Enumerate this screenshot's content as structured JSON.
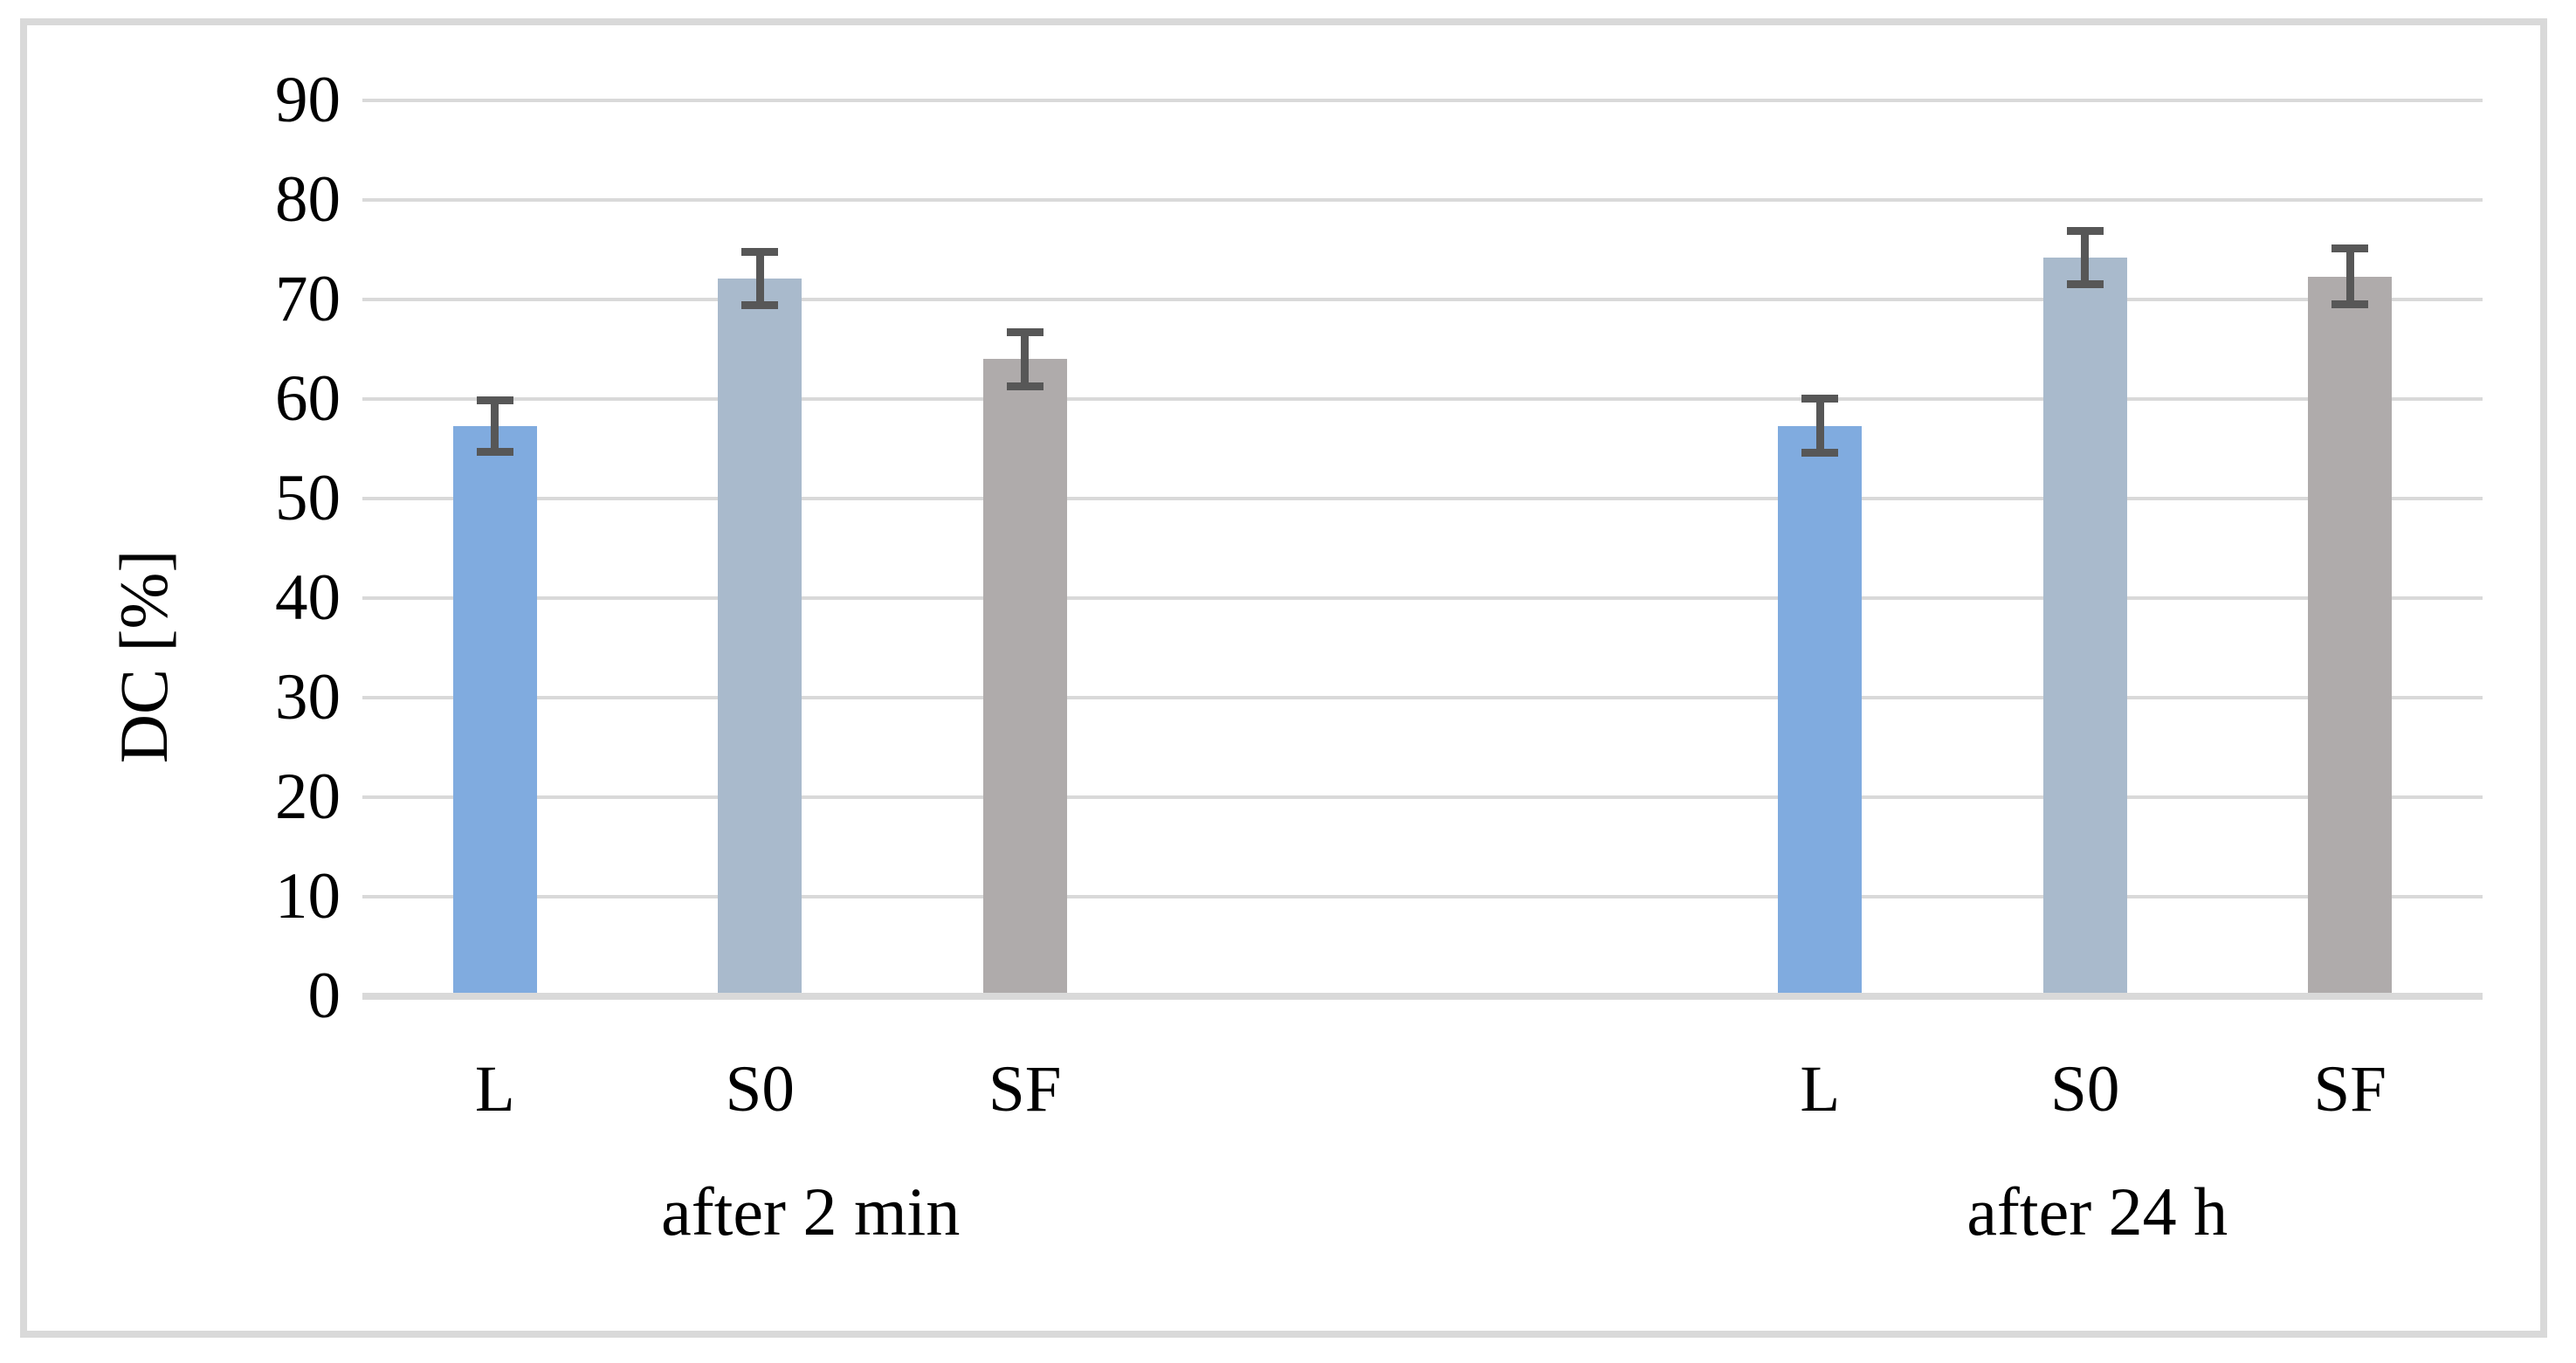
{
  "figure": {
    "background": "#FFFFFF",
    "border_color": "#D9D9D9"
  },
  "chart_data": {
    "type": "bar",
    "title": "",
    "xlabel": "",
    "ylabel": "DC [%]",
    "ylim": [
      0,
      90
    ],
    "yticks": [
      0,
      10,
      20,
      30,
      40,
      50,
      60,
      70,
      80,
      90
    ],
    "grid": true,
    "legend": "none",
    "categories": [
      "L",
      "S0",
      "SF"
    ],
    "groups": [
      {
        "label": "after 2 min",
        "values": [
          57.3,
          72.1,
          64.0
        ],
        "errors": [
          3.0,
          3.1,
          3.1
        ]
      },
      {
        "label": "after 24 h",
        "values": [
          57.3,
          74.2,
          72.3
        ],
        "errors": [
          3.1,
          3.1,
          3.2
        ]
      }
    ],
    "bar_colors": [
      "#80ABDF",
      "#A9BACC",
      "#AFABAB"
    ],
    "error_bar_color": "#575757",
    "gridline_color": "#D9D9D9",
    "axis_line_color": "#D9D9D9",
    "text_color": "#000000"
  }
}
